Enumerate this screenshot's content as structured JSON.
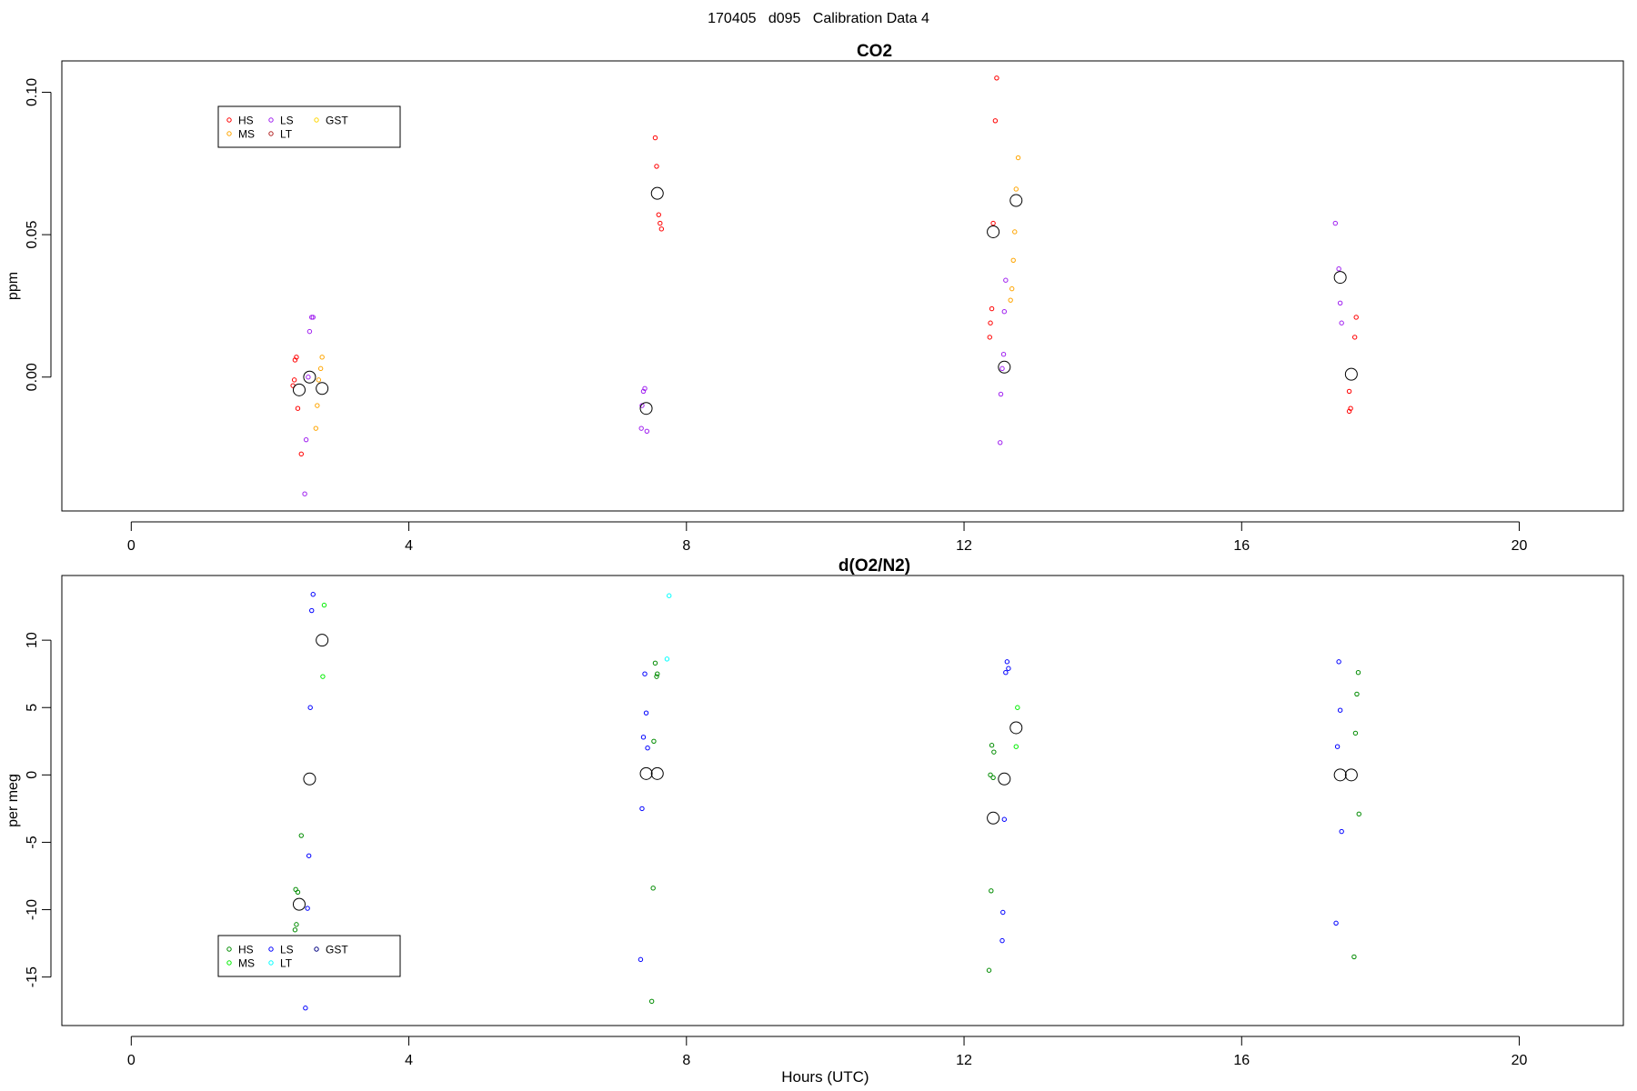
{
  "figure": {
    "title_parts": [
      "170405",
      "d095",
      "Calibration Data 4"
    ]
  },
  "chart_data": [
    {
      "type": "scatter",
      "title": "CO2",
      "xlabel": "",
      "ylabel": "ppm",
      "xlim": [
        -1,
        21.5
      ],
      "ylim": [
        -0.047,
        0.111
      ],
      "xticks": [
        0,
        4,
        8,
        12,
        16,
        20
      ],
      "yticks": [
        0.0,
        0.05,
        0.1
      ],
      "ytick_labels": [
        "0.00",
        "0.05",
        "0.10"
      ],
      "legend": {
        "position": "top-left",
        "entries": [
          {
            "name": "HS",
            "color": "#ff0000"
          },
          {
            "name": "MS",
            "color": "#ffa500"
          },
          {
            "name": "LS",
            "color": "#a020f0"
          },
          {
            "name": "LT",
            "color": "#b22222"
          },
          {
            "name": "GST",
            "color": "#ffd700"
          }
        ]
      },
      "series": [
        {
          "name": "HS",
          "color": "#ff0000",
          "points": [
            [
              2.38,
              0.007
            ],
            [
              2.36,
              0.006
            ],
            [
              2.35,
              -0.001
            ],
            [
              2.33,
              -0.003
            ],
            [
              2.4,
              -0.011
            ],
            [
              2.45,
              -0.027
            ],
            [
              7.55,
              0.084
            ],
            [
              7.57,
              0.074
            ],
            [
              7.6,
              0.057
            ],
            [
              7.62,
              0.054
            ],
            [
              7.64,
              0.052
            ],
            [
              12.47,
              0.105
            ],
            [
              12.45,
              0.09
            ],
            [
              12.42,
              0.054
            ],
            [
              12.4,
              0.024
            ],
            [
              12.38,
              0.019
            ],
            [
              12.37,
              0.014
            ],
            [
              17.65,
              0.021
            ],
            [
              17.63,
              0.014
            ],
            [
              17.55,
              -0.005
            ],
            [
              17.57,
              -0.011
            ],
            [
              17.55,
              -0.012
            ]
          ]
        },
        {
          "name": "MS",
          "color": "#ffa500",
          "points": [
            [
              2.75,
              0.007
            ],
            [
              2.73,
              0.003
            ],
            [
              2.7,
              -0.001
            ],
            [
              2.68,
              -0.01
            ],
            [
              2.66,
              -0.018
            ],
            [
              12.78,
              0.077
            ],
            [
              12.75,
              0.066
            ],
            [
              12.73,
              0.051
            ],
            [
              12.71,
              0.041
            ],
            [
              12.69,
              0.031
            ],
            [
              12.67,
              0.027
            ]
          ]
        },
        {
          "name": "LS",
          "color": "#a020f0",
          "points": [
            [
              2.6,
              0.021
            ],
            [
              2.62,
              0.021
            ],
            [
              2.57,
              0.016
            ],
            [
              2.55,
              0.0
            ],
            [
              2.52,
              -0.022
            ],
            [
              2.5,
              -0.041
            ],
            [
              7.38,
              -0.005
            ],
            [
              7.4,
              -0.004
            ],
            [
              7.36,
              -0.01
            ],
            [
              7.35,
              -0.018
            ],
            [
              7.43,
              -0.019
            ],
            [
              12.6,
              0.034
            ],
            [
              12.58,
              0.023
            ],
            [
              12.57,
              0.008
            ],
            [
              12.55,
              0.003
            ],
            [
              12.53,
              -0.006
            ],
            [
              12.52,
              -0.023
            ],
            [
              17.35,
              0.054
            ],
            [
              17.4,
              0.038
            ],
            [
              17.42,
              0.026
            ],
            [
              17.44,
              0.019
            ]
          ]
        }
      ],
      "means": [
        [
          2.42,
          -0.0045
        ],
        [
          2.57,
          0.0
        ],
        [
          2.75,
          -0.004
        ],
        [
          7.42,
          -0.011
        ],
        [
          7.58,
          0.0645
        ],
        [
          12.42,
          0.051
        ],
        [
          12.58,
          0.0035
        ],
        [
          12.75,
          0.062
        ],
        [
          17.42,
          0.035
        ],
        [
          17.58,
          0.001
        ]
      ]
    },
    {
      "type": "scatter",
      "title": "d(O2/N2)",
      "xlabel": "Hours (UTC)",
      "ylabel": "per meg",
      "xlim": [
        -1,
        21.5
      ],
      "ylim": [
        -18.6,
        14.8
      ],
      "xticks": [
        0,
        4,
        8,
        12,
        16,
        20
      ],
      "yticks": [
        -15,
        -10,
        -5,
        0,
        5,
        10
      ],
      "ytick_labels": [
        "-15",
        "-10",
        "-5",
        "0",
        "5",
        "10"
      ],
      "legend": {
        "position": "bottom-left",
        "entries": [
          {
            "name": "HS",
            "color": "#008b00"
          },
          {
            "name": "MS",
            "color": "#00ee00"
          },
          {
            "name": "LS",
            "color": "#0000ff"
          },
          {
            "name": "LT",
            "color": "#00ffff"
          },
          {
            "name": "GST",
            "color": "#000080"
          }
        ]
      },
      "series": [
        {
          "name": "HS",
          "color": "#008b00",
          "points": [
            [
              2.45,
              -4.5
            ],
            [
              2.37,
              -8.5
            ],
            [
              2.4,
              -8.7
            ],
            [
              2.38,
              -11.1
            ],
            [
              2.36,
              -11.5
            ],
            [
              7.55,
              8.3
            ],
            [
              7.57,
              7.3
            ],
            [
              7.58,
              7.5
            ],
            [
              7.53,
              2.5
            ],
            [
              7.52,
              -8.4
            ],
            [
              7.5,
              -16.8
            ],
            [
              12.4,
              2.2
            ],
            [
              12.43,
              1.7
            ],
            [
              12.38,
              0.0
            ],
            [
              12.42,
              -0.2
            ],
            [
              12.39,
              -8.6
            ],
            [
              12.36,
              -14.5
            ],
            [
              17.68,
              7.6
            ],
            [
              17.66,
              6.0
            ],
            [
              17.64,
              3.1
            ],
            [
              17.69,
              -2.9
            ],
            [
              17.62,
              -13.5
            ]
          ]
        },
        {
          "name": "MS",
          "color": "#00ee00",
          "points": [
            [
              2.78,
              12.6
            ],
            [
              2.76,
              7.3
            ],
            [
              12.77,
              5.0
            ],
            [
              12.75,
              2.1
            ]
          ]
        },
        {
          "name": "LS",
          "color": "#0000ff",
          "points": [
            [
              2.62,
              13.4
            ],
            [
              2.6,
              12.2
            ],
            [
              2.58,
              5.0
            ],
            [
              2.56,
              -6.0
            ],
            [
              2.54,
              -9.9
            ],
            [
              2.51,
              -17.3
            ],
            [
              7.4,
              7.5
            ],
            [
              7.42,
              4.6
            ],
            [
              7.38,
              2.8
            ],
            [
              7.44,
              2.0
            ],
            [
              7.36,
              -2.5
            ],
            [
              7.34,
              -13.7
            ],
            [
              12.62,
              8.4
            ],
            [
              12.6,
              7.6
            ],
            [
              12.64,
              7.9
            ],
            [
              12.58,
              -3.3
            ],
            [
              12.56,
              -10.2
            ],
            [
              12.55,
              -12.3
            ],
            [
              17.4,
              8.4
            ],
            [
              17.42,
              4.8
            ],
            [
              17.38,
              2.1
            ],
            [
              17.44,
              -4.2
            ],
            [
              17.36,
              -11.0
            ]
          ]
        },
        {
          "name": "LT",
          "color": "#00ffff",
          "points": [
            [
              7.75,
              13.3
            ],
            [
              7.72,
              8.6
            ]
          ]
        }
      ],
      "means": [
        [
          2.42,
          -9.6
        ],
        [
          2.57,
          -0.3
        ],
        [
          2.75,
          10.0
        ],
        [
          7.42,
          0.1
        ],
        [
          7.58,
          0.1
        ],
        [
          12.42,
          -3.2
        ],
        [
          12.58,
          -0.3
        ],
        [
          12.75,
          3.5
        ],
        [
          17.42,
          0.0
        ],
        [
          17.58,
          0.0
        ]
      ]
    }
  ]
}
